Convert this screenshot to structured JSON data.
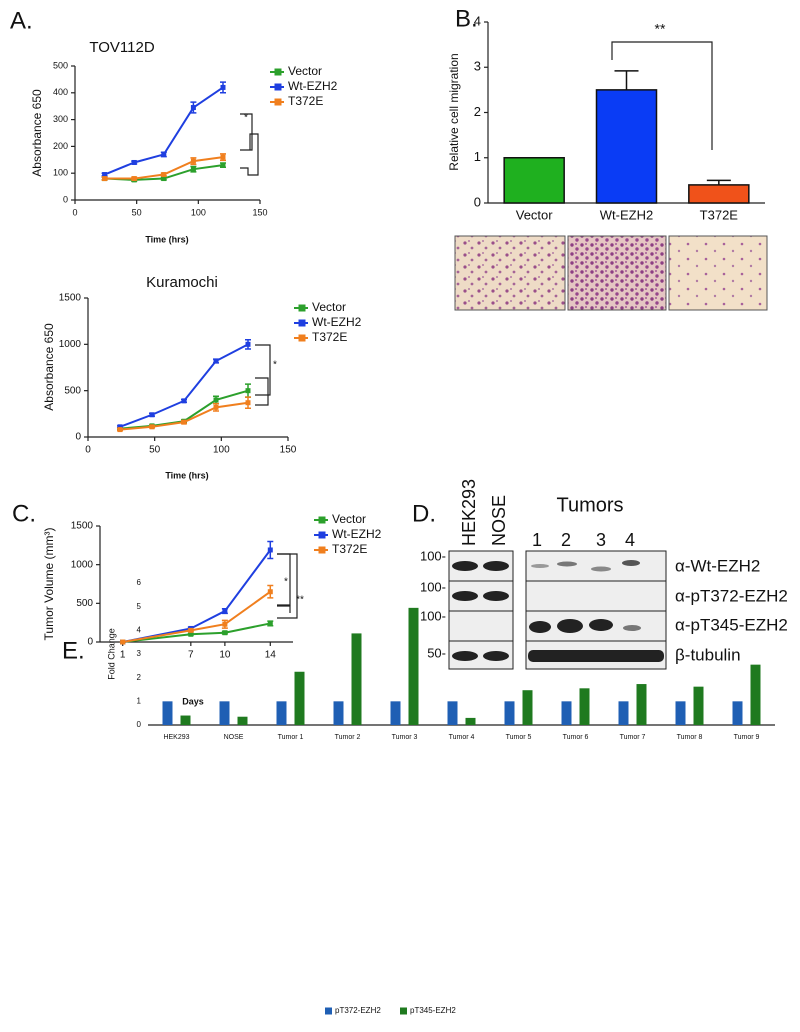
{
  "panels": {
    "labels": [
      "A.",
      "B.",
      "C.",
      "D.",
      "E."
    ]
  },
  "blot": {
    "top_lanes": [
      "HEK293",
      "NOSE"
    ],
    "tumors_title": "Tumors",
    "tumor_lanes": [
      "1",
      "2",
      "3",
      "4"
    ],
    "mw": [
      "100-",
      "100-",
      "100-",
      "50-"
    ],
    "rows": [
      "α-Wt-EZH2",
      "α-pT372-EZH2",
      "α-pT345-EZH2",
      "β-tubulin"
    ]
  },
  "chart_data": [
    {
      "type": "line",
      "title": "TOV112D",
      "x_label": "Time (hrs)",
      "y_label": "Absorbance 650",
      "x": [
        24,
        48,
        72,
        96,
        120
      ],
      "xlim": [
        0,
        150
      ],
      "xticks": [
        0,
        50,
        100,
        150
      ],
      "ylim": [
        0,
        500
      ],
      "yticks": [
        0,
        100,
        200,
        300,
        400,
        500
      ],
      "annotations": [
        "*"
      ],
      "series": [
        {
          "name": "Vector",
          "color": "#2ca02c",
          "values": [
            80,
            75,
            80,
            115,
            130
          ],
          "errors": [
            5,
            5,
            5,
            10,
            8
          ]
        },
        {
          "name": "Wt-EZH2",
          "color": "#1f3fe0",
          "values": [
            95,
            140,
            170,
            345,
            420
          ],
          "errors": [
            5,
            5,
            8,
            20,
            20
          ]
        },
        {
          "name": "T372E",
          "color": "#f07f1e",
          "values": [
            80,
            80,
            95,
            145,
            160
          ],
          "errors": [
            5,
            5,
            5,
            12,
            12
          ]
        }
      ]
    },
    {
      "type": "line",
      "title": "Kuramochi",
      "x_label": "Time (hrs)",
      "y_label": "Absorbance 650",
      "x": [
        24,
        48,
        72,
        96,
        120
      ],
      "xlim": [
        0,
        150
      ],
      "xticks": [
        0,
        50,
        100,
        150
      ],
      "ylim": [
        0,
        1500
      ],
      "yticks": [
        0,
        500,
        1000,
        1500
      ],
      "annotations": [
        "*"
      ],
      "series": [
        {
          "name": "Vector",
          "color": "#2ca02c",
          "values": [
            90,
            120,
            170,
            400,
            500
          ],
          "errors": [
            10,
            10,
            15,
            40,
            70
          ]
        },
        {
          "name": "Wt-EZH2",
          "color": "#1f3fe0",
          "values": [
            110,
            240,
            390,
            820,
            1000
          ],
          "errors": [
            10,
            15,
            15,
            20,
            50
          ]
        },
        {
          "name": "T372E",
          "color": "#f07f1e",
          "values": [
            80,
            110,
            160,
            320,
            370
          ],
          "errors": [
            10,
            10,
            15,
            40,
            60
          ]
        }
      ]
    },
    {
      "type": "line",
      "x_label": "Days",
      "y_label": "Tumor Volume (mm³)",
      "x": [
        1,
        7,
        10,
        14
      ],
      "xlim": [
        -1,
        16
      ],
      "xticks": [
        1,
        7,
        10,
        14
      ],
      "ylim": [
        0,
        1500
      ],
      "yticks": [
        0,
        500,
        1000,
        1500
      ],
      "annotations": [
        "*",
        "**"
      ],
      "series": [
        {
          "name": "Vector",
          "color": "#2ca02c",
          "values": [
            0,
            100,
            120,
            240
          ],
          "errors": [
            0,
            10,
            15,
            30
          ]
        },
        {
          "name": "Wt-EZH2",
          "color": "#1f3fe0",
          "values": [
            0,
            175,
            400,
            1190
          ],
          "errors": [
            0,
            15,
            30,
            110
          ]
        },
        {
          "name": "T372E",
          "color": "#f07f1e",
          "values": [
            0,
            150,
            230,
            650
          ],
          "errors": [
            0,
            15,
            50,
            80
          ]
        }
      ]
    },
    {
      "type": "bar",
      "y_label": "Relative cell migration",
      "categories": [
        "Vector",
        "Wt-EZH2",
        "T372E"
      ],
      "values": [
        1,
        2.5,
        0.4
      ],
      "errors": [
        0,
        0.42,
        0.1
      ],
      "colors": [
        "#1fb01f",
        "#0a3cf5",
        "#f0521a"
      ],
      "ylim": [
        0,
        4
      ],
      "yticks": [
        0,
        1,
        2,
        3,
        4
      ],
      "annotations": [
        "**"
      ]
    },
    {
      "type": "grouped_bar",
      "y_label": "Fold Change",
      "categories": [
        "HEK293",
        "NOSE",
        "Tumor 1",
        "Tumor 2",
        "Tumor 3",
        "Tumor 4",
        "Tumor 5",
        "Tumor 6",
        "Tumor 7",
        "Tumor 8",
        "Tumor 9"
      ],
      "ylim": [
        0,
        6
      ],
      "yticks": [
        0,
        1,
        2,
        3,
        4,
        5,
        6
      ],
      "series": [
        {
          "name": "pT372-EZH2",
          "color": "#1f5fb4",
          "values": [
            1,
            1,
            1,
            1,
            1,
            1,
            1,
            1,
            1,
            1,
            1
          ]
        },
        {
          "name": "pT345-EZH2",
          "color": "#1f7a1f",
          "values": [
            0.4,
            0.35,
            2.25,
            3.87,
            4.95,
            0.3,
            1.47,
            1.55,
            1.73,
            1.62,
            2.55
          ]
        }
      ]
    }
  ]
}
